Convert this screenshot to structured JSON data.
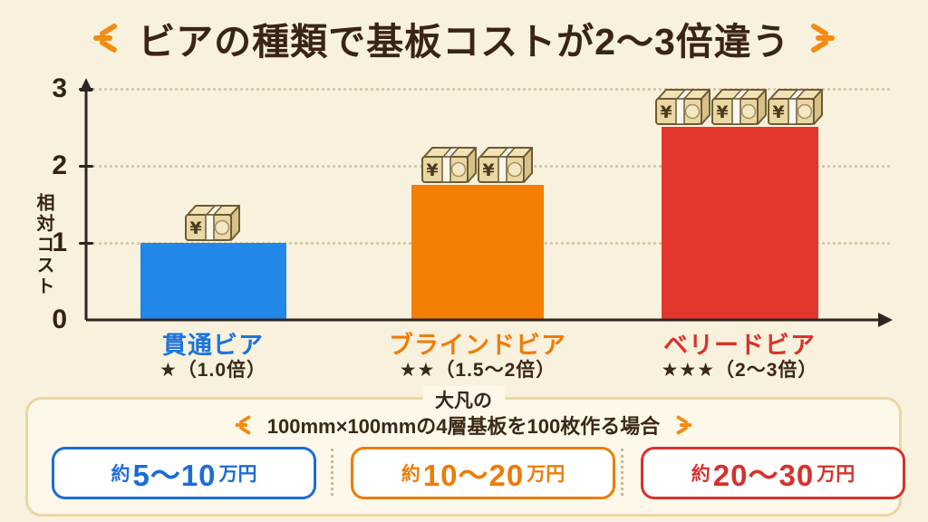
{
  "title": {
    "text": "ビアの種類で基板コストが2〜3倍違う"
  },
  "chart_data": {
    "type": "bar",
    "title": "ビアの種類で基板コストが2〜3倍違う",
    "ylabel": "相対コスト",
    "ylim": [
      0,
      3
    ],
    "yticks": [
      0,
      1,
      2,
      3
    ],
    "gridlines": "dotted horizontal lines at y = 1, 2, 3",
    "legend": "none",
    "categories": [
      "貫通ビア",
      "ブラインドビア",
      "ベリードビア"
    ],
    "values": [
      1.0,
      1.75,
      2.5
    ],
    "bar_colors": [
      "#2187e8",
      "#f57e04",
      "#e4362d"
    ],
    "label_colors": [
      "#1b74dc",
      "#ef7c04",
      "#da322b"
    ],
    "ratings": [
      "★（1.0倍）",
      "★★（1.5〜2倍）",
      "★★★（2〜3倍）"
    ],
    "money_stack_counts": [
      1,
      2,
      3
    ],
    "money_icon": "yen-banknote-bundle-icon"
  },
  "footer": {
    "heading_top": "大凡の",
    "heading_main": "100mm×100mmの4層基板を100枚作る場合",
    "price_boxes": [
      {
        "prefix": "約",
        "value": "5〜10",
        "unit": "万円",
        "color": "#1c6cd6"
      },
      {
        "prefix": "約",
        "value": "10〜20",
        "unit": "万円",
        "color": "#ee7c04"
      },
      {
        "prefix": "約",
        "value": "20〜30",
        "unit": "万円",
        "color": "#d6312c"
      }
    ]
  },
  "colors": {
    "background": "#f8f1de",
    "panel_background": "#fdf8ea",
    "panel_border": "#ecd7a4",
    "title_text": "#3a2414",
    "axis": "#2e2620",
    "grid": "#d7caab",
    "sparkle_accent": "#f28c12"
  }
}
